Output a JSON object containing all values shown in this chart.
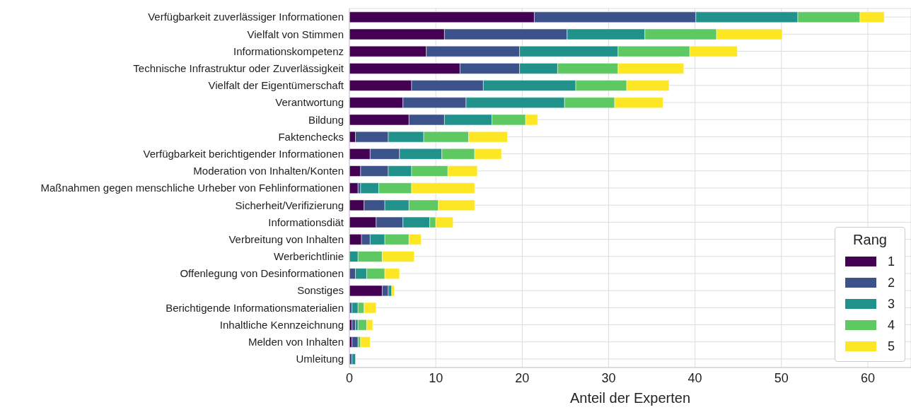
{
  "chart_data": {
    "type": "bar",
    "orientation": "horizontal",
    "stacked": true,
    "xlabel": "Anteil der Experten",
    "legend_title": "Rang",
    "legend": "bottom right",
    "grid": true,
    "categories": [
      "Verfügbarkeit zuverlässiger Informationen",
      "Vielfalt von Stimmen",
      "Informationskompetenz",
      "Technische Infrastruktur oder Zuverlässigkeit",
      "Vielfalt der Eigentümerschaft",
      "Verantwortung",
      "Bildung",
      "Faktenchecks",
      "Verfügbarkeit berichtigender Informationen",
      "Moderation von Inhalten/Konten",
      "Maßnahmen gegen menschliche Urheber von Fehlinformationen",
      "Sicherheit/Verifizierung",
      "Informationsdiät",
      "Verbreitung von Inhalten",
      "Werberichtlinie",
      "Offenlegung von Desinformationen",
      "Sonstiges",
      "Berichtigende Informationsmaterialien",
      "Inhaltliche Kennzeichnung",
      "Melden von Inhalten",
      "Umleitung"
    ],
    "series": [
      {
        "name": "1",
        "color": "#440154",
        "values": [
          21.4,
          11.0,
          8.9,
          12.8,
          7.2,
          6.2,
          6.9,
          0.7,
          2.4,
          1.3,
          1.0,
          1.7,
          3.1,
          1.4,
          null,
          null,
          3.8,
          null,
          0.3,
          0.3,
          null
        ]
      },
      {
        "name": "2",
        "color": "#3b528b",
        "values": [
          18.7,
          14.2,
          10.8,
          6.9,
          8.3,
          7.3,
          4.1,
          3.8,
          3.4,
          3.2,
          0.3,
          2.4,
          3.1,
          1.0,
          null,
          0.7,
          0.7,
          0.3,
          0.4,
          0.7,
          0.3
        ]
      },
      {
        "name": "3",
        "color": "#21918c",
        "values": [
          11.8,
          9.0,
          11.4,
          4.4,
          10.7,
          11.4,
          5.5,
          4.1,
          4.9,
          2.7,
          2.1,
          2.8,
          3.1,
          1.7,
          1.0,
          1.3,
          0.4,
          0.7,
          0.3,
          null,
          0.4
        ]
      },
      {
        "name": "4",
        "color": "#5ec962",
        "values": [
          7.2,
          8.3,
          8.3,
          7.0,
          5.9,
          5.8,
          3.9,
          5.2,
          3.8,
          4.2,
          3.8,
          3.4,
          0.7,
          2.8,
          2.8,
          2.1,
          null,
          0.7,
          1.0,
          0.3,
          null
        ]
      },
      {
        "name": "5",
        "color": "#fde725",
        "values": [
          2.8,
          7.6,
          5.5,
          7.6,
          4.9,
          5.6,
          1.4,
          4.5,
          3.1,
          3.4,
          7.3,
          4.2,
          2.0,
          1.4,
          3.7,
          1.7,
          0.3,
          1.4,
          0.7,
          1.1,
          null
        ]
      }
    ],
    "xlim": [
      0,
      65
    ],
    "xticks": [
      0,
      10,
      20,
      30,
      40,
      50,
      60
    ]
  }
}
